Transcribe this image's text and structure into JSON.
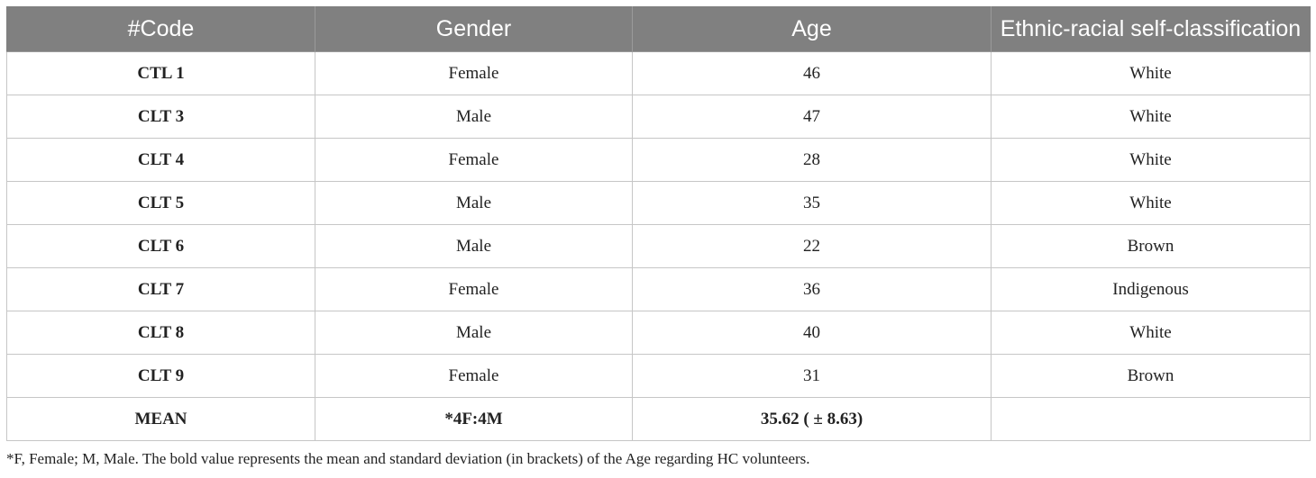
{
  "table": {
    "headers": [
      "#Code",
      "Gender",
      "Age",
      "Ethnic-racial self-classification"
    ],
    "rows": [
      {
        "code": "CTL 1",
        "gender": "Female",
        "age": "46",
        "ethnicity": "White"
      },
      {
        "code": "CLT 3",
        "gender": "Male",
        "age": "47",
        "ethnicity": "White"
      },
      {
        "code": "CLT 4",
        "gender": "Female",
        "age": "28",
        "ethnicity": "White"
      },
      {
        "code": "CLT 5",
        "gender": "Male",
        "age": "35",
        "ethnicity": "White"
      },
      {
        "code": "CLT 6",
        "gender": "Male",
        "age": "22",
        "ethnicity": "Brown"
      },
      {
        "code": "CLT 7",
        "gender": "Female",
        "age": "36",
        "ethnicity": "Indigenous"
      },
      {
        "code": "CLT 8",
        "gender": "Male",
        "age": "40",
        "ethnicity": "White"
      },
      {
        "code": "CLT 9",
        "gender": "Female",
        "age": "31",
        "ethnicity": "Brown"
      }
    ],
    "mean_row": {
      "code": "MEAN",
      "gender": "*4F:4M",
      "age": "35.62 ( ± 8.63)",
      "ethnicity": ""
    }
  },
  "footnote": "*F, Female; M, Male. The bold value represents the mean and standard deviation (in brackets) of the Age regarding HC volunteers.",
  "colors": {
    "header_background": "#808080",
    "header_text": "#ffffff",
    "grid_line": "#c6c6c6"
  }
}
